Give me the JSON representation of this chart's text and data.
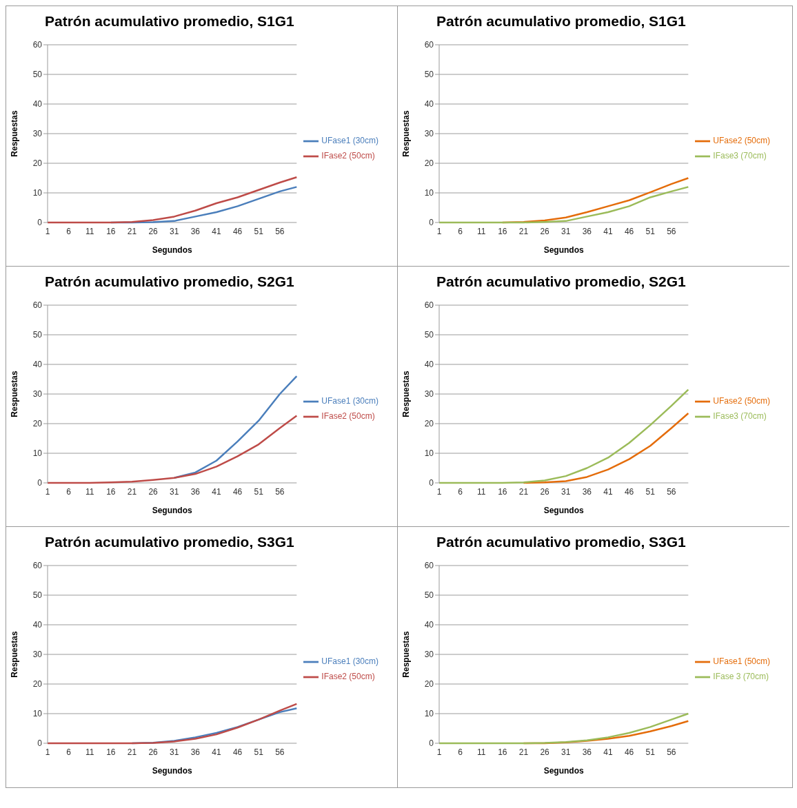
{
  "chart_data": [
    {
      "type": "line",
      "title": "Patrón acumulativo promedio, S1G1",
      "xlabel": "Segundos",
      "ylabel": "Respuestas",
      "x": [
        1,
        6,
        11,
        16,
        21,
        26,
        31,
        36,
        41,
        46,
        51,
        56,
        60
      ],
      "xlim": [
        1,
        60
      ],
      "xticks": [
        1,
        6,
        11,
        16,
        21,
        26,
        31,
        36,
        41,
        46,
        51,
        56
      ],
      "ylim": [
        0,
        60
      ],
      "yticks": [
        0,
        10,
        20,
        30,
        40,
        50,
        60
      ],
      "grid": "y",
      "legend": "right",
      "series": [
        {
          "name": "UFase1 (30cm)",
          "color": "#4a7ebb",
          "values": [
            null,
            null,
            null,
            0,
            0,
            0.1,
            0.5,
            2,
            3.5,
            5.5,
            8,
            10.5,
            12
          ]
        },
        {
          "name": "IFase2 (50cm)",
          "color": "#be4b48",
          "values": [
            0,
            0,
            0,
            0,
            0.2,
            0.8,
            2,
            4,
            6.5,
            8.5,
            11,
            13.5,
            15.3
          ]
        }
      ]
    },
    {
      "type": "line",
      "title": "Patrón acumulativo promedio, S1G1",
      "xlabel": "Segundos",
      "ylabel": "Respuestas",
      "x": [
        1,
        6,
        11,
        16,
        21,
        26,
        31,
        36,
        41,
        46,
        51,
        56,
        60
      ],
      "xlim": [
        1,
        60
      ],
      "xticks": [
        1,
        6,
        11,
        16,
        21,
        26,
        31,
        36,
        41,
        46,
        51,
        56
      ],
      "ylim": [
        0,
        60
      ],
      "yticks": [
        0,
        10,
        20,
        30,
        40,
        50,
        60
      ],
      "grid": "y",
      "legend": "right",
      "series": [
        {
          "name": "UFase2 (50cm)",
          "color": "#e46c0a",
          "values": [
            null,
            null,
            null,
            0,
            0.2,
            0.7,
            1.7,
            3.5,
            5.5,
            7.5,
            10.2,
            13,
            15
          ]
        },
        {
          "name": "IFase3 (70cm)",
          "color": "#9bbb59",
          "values": [
            0,
            0,
            0,
            0,
            0,
            0.2,
            0.5,
            2,
            3.5,
            5.5,
            8.5,
            10.5,
            12
          ]
        }
      ]
    },
    {
      "type": "line",
      "title": "Patrón acumulativo promedio, S2G1",
      "xlabel": "Segundos",
      "ylabel": "Respuestas",
      "x": [
        1,
        6,
        11,
        16,
        21,
        26,
        31,
        36,
        41,
        46,
        51,
        56,
        60
      ],
      "xlim": [
        1,
        60
      ],
      "xticks": [
        1,
        6,
        11,
        16,
        21,
        26,
        31,
        36,
        41,
        46,
        51,
        56
      ],
      "ylim": [
        0,
        60
      ],
      "yticks": [
        0,
        10,
        20,
        30,
        40,
        50,
        60
      ],
      "grid": "y",
      "legend": "right",
      "series": [
        {
          "name": "UFase1 (30cm)",
          "color": "#4a7ebb",
          "values": [
            null,
            null,
            null,
            null,
            null,
            null,
            1.7,
            3.5,
            7.5,
            14,
            21,
            30,
            36
          ]
        },
        {
          "name": "IFase2 (50cm)",
          "color": "#be4b48",
          "values": [
            0,
            0,
            0,
            0.2,
            0.4,
            1,
            1.7,
            3,
            5.5,
            9,
            13,
            18.5,
            22.7
          ]
        }
      ]
    },
    {
      "type": "line",
      "title": "Patrón acumulativo promedio, S2G1",
      "xlabel": "Segundos",
      "ylabel": "Respuestas",
      "x": [
        1,
        6,
        11,
        16,
        21,
        26,
        31,
        36,
        41,
        46,
        51,
        56,
        60
      ],
      "xlim": [
        1,
        60
      ],
      "xticks": [
        1,
        6,
        11,
        16,
        21,
        26,
        31,
        36,
        41,
        46,
        51,
        56
      ],
      "ylim": [
        0,
        60
      ],
      "yticks": [
        0,
        10,
        20,
        30,
        40,
        50,
        60
      ],
      "grid": "y",
      "legend": "right",
      "series": [
        {
          "name": "UFase2 (50cm)",
          "color": "#e46c0a",
          "values": [
            null,
            null,
            null,
            null,
            0,
            0.2,
            0.6,
            2,
            4.5,
            8,
            12.5,
            18.5,
            23.5
          ]
        },
        {
          "name": "IFase3 (70cm)",
          "color": "#9bbb59",
          "values": [
            0,
            0,
            0,
            0,
            0.2,
            0.8,
            2.3,
            5,
            8.5,
            13.5,
            19.5,
            26,
            31.5
          ]
        }
      ]
    },
    {
      "type": "line",
      "title": "Patrón acumulativo promedio, S3G1",
      "xlabel": "Segundos",
      "ylabel": "Respuestas",
      "x": [
        1,
        6,
        11,
        16,
        21,
        26,
        31,
        36,
        41,
        46,
        51,
        56,
        60
      ],
      "xlim": [
        1,
        60
      ],
      "xticks": [
        1,
        6,
        11,
        16,
        21,
        26,
        31,
        36,
        41,
        46,
        51,
        56
      ],
      "ylim": [
        0,
        60
      ],
      "yticks": [
        0,
        10,
        20,
        30,
        40,
        50,
        60
      ],
      "grid": "y",
      "legend": "right",
      "series": [
        {
          "name": "UFase1 (30cm)",
          "color": "#4a7ebb",
          "values": [
            null,
            null,
            null,
            null,
            0,
            0.2,
            0.8,
            2,
            3.5,
            5.5,
            8,
            10.5,
            11.8
          ]
        },
        {
          "name": "IFase2 (50cm)",
          "color": "#be4b48",
          "values": [
            0,
            0,
            0,
            0,
            0,
            0.1,
            0.6,
            1.5,
            3,
            5.3,
            8,
            11,
            13.3
          ]
        }
      ]
    },
    {
      "type": "line",
      "title": "Patrón acumulativo promedio, S3G1",
      "xlabel": "Segundos",
      "ylabel": "Respuestas",
      "x": [
        1,
        6,
        11,
        16,
        21,
        26,
        31,
        36,
        41,
        46,
        51,
        56,
        60
      ],
      "xlim": [
        1,
        60
      ],
      "xticks": [
        1,
        6,
        11,
        16,
        21,
        26,
        31,
        36,
        41,
        46,
        51,
        56
      ],
      "ylim": [
        0,
        60
      ],
      "yticks": [
        0,
        10,
        20,
        30,
        40,
        50,
        60
      ],
      "grid": "y",
      "legend": "right",
      "series": [
        {
          "name": "UFase1 (50cm)",
          "color": "#e46c0a",
          "values": [
            null,
            null,
            null,
            null,
            0,
            0,
            0.3,
            0.8,
            1.5,
            2.5,
            4,
            5.8,
            7.5
          ]
        },
        {
          "name": "IFase 3 (70cm)",
          "color": "#9bbb59",
          "values": [
            0,
            0,
            0,
            0,
            0,
            0.1,
            0.4,
            1,
            2,
            3.5,
            5.5,
            8,
            10
          ]
        }
      ]
    }
  ]
}
